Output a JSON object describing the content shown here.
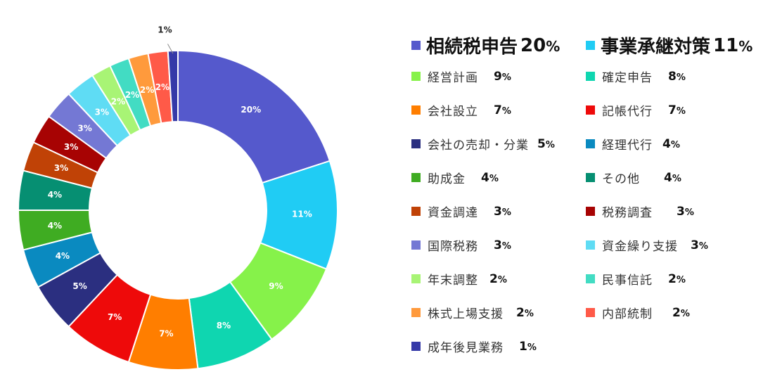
{
  "chart_data": {
    "type": "pie",
    "categories": [
      "相続税申告",
      "事業承継対策",
      "経営計画",
      "確定申告",
      "会社設立",
      "記帳代行",
      "会社の売却・分業",
      "経理代行",
      "助成金",
      "その他",
      "資金調達",
      "税務調査",
      "国際税務",
      "資金繰り支援",
      "年末調整",
      "民事信託",
      "株式上場支援",
      "内部統制",
      "成年後見業務"
    ],
    "values": [
      20,
      11,
      9,
      8,
      7,
      7,
      5,
      4,
      4,
      4,
      3,
      3,
      3,
      3,
      2,
      2,
      2,
      2,
      1
    ],
    "data_labels": [
      "20%",
      "11%",
      "9%",
      "8%",
      "7%",
      "7%",
      "5%",
      "4%",
      "4%",
      "4%",
      "3%",
      "3%",
      "3%",
      "3%",
      "2%",
      "2%",
      "2%",
      "2%",
      "1%"
    ],
    "colors": [
      "#5559cc",
      "#20ccf4",
      "#86f24a",
      "#0fd6b0",
      "#ff7e00",
      "#ee0a0a",
      "#2b2f80",
      "#0a8ac0",
      "#3fac22",
      "#068f72",
      "#c04206",
      "#a70303",
      "#7478d4",
      "#5fdcf4",
      "#a8f475",
      "#42dcc3",
      "#ff9a3c",
      "#ff5a48",
      "#3539a8"
    ]
  },
  "legend": {
    "items": [
      {
        "label": "相続税申告",
        "value": "20",
        "unit": "%"
      },
      {
        "label": "事業承継対策",
        "value": "11",
        "unit": "%"
      },
      {
        "label": "経営計画",
        "value": "9",
        "unit": "%"
      },
      {
        "label": "確定申告",
        "value": "8",
        "unit": "%"
      },
      {
        "label": "会社設立",
        "value": "7",
        "unit": "%"
      },
      {
        "label": "記帳代行",
        "value": "7",
        "unit": "%"
      },
      {
        "label": "会社の売却・分業",
        "value": "5",
        "unit": "%"
      },
      {
        "label": "経理代行",
        "value": "4",
        "unit": "%"
      },
      {
        "label": "助成金",
        "value": "4",
        "unit": "%"
      },
      {
        "label": "その他",
        "value": "4",
        "unit": "%"
      },
      {
        "label": "資金調達",
        "value": "3",
        "unit": "%"
      },
      {
        "label": "税務調査",
        "value": "3",
        "unit": "%"
      },
      {
        "label": "国際税務",
        "value": "3",
        "unit": "%"
      },
      {
        "label": "資金繰り支援",
        "value": "3",
        "unit": "%"
      },
      {
        "label": "年末調整",
        "value": "2",
        "unit": "%"
      },
      {
        "label": "民事信託",
        "value": "2",
        "unit": "%"
      },
      {
        "label": "株式上場支援",
        "value": "2",
        "unit": "%"
      },
      {
        "label": "内部統制",
        "value": "2",
        "unit": "%"
      },
      {
        "label": "成年後見業務",
        "value": "1",
        "unit": "%"
      }
    ]
  }
}
